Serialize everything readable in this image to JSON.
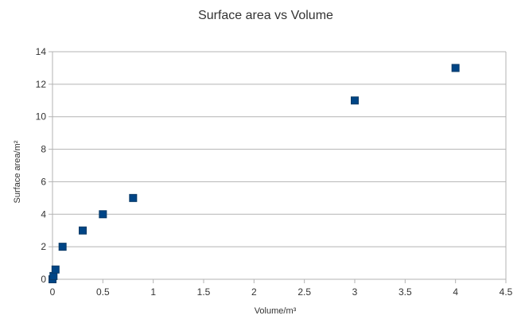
{
  "chart_data": {
    "type": "scatter",
    "title": "Surface area vs Volume",
    "xlabel": "Volume/m³",
    "ylabel": "Surface area/m²",
    "xlim": [
      0,
      4.5
    ],
    "ylim": [
      0,
      14
    ],
    "x_ticks": [
      0,
      0.5,
      1,
      1.5,
      2,
      2.5,
      3,
      3.5,
      4,
      4.5
    ],
    "y_ticks": [
      0,
      2,
      4,
      6,
      8,
      10,
      12,
      14
    ],
    "x_tick_labels": [
      "0",
      "0.5",
      "1",
      "1.5",
      "2",
      "2.5",
      "3",
      "3.5",
      "4",
      "4.5"
    ],
    "y_tick_labels": [
      "0",
      "2",
      "4",
      "6",
      "8",
      "10",
      "12",
      "14"
    ],
    "grid": {
      "horizontal": true,
      "vertical": false
    },
    "legend": "none",
    "series": [
      {
        "color": "#004586",
        "marker": "square",
        "points": [
          {
            "x": 0.0,
            "y": 0.0
          },
          {
            "x": 0.01,
            "y": 0.2
          },
          {
            "x": 0.03,
            "y": 0.6
          },
          {
            "x": 0.1,
            "y": 2
          },
          {
            "x": 0.3,
            "y": 3
          },
          {
            "x": 0.5,
            "y": 4
          },
          {
            "x": 0.8,
            "y": 5
          },
          {
            "x": 3,
            "y": 11
          },
          {
            "x": 4,
            "y": 13
          }
        ]
      }
    ]
  }
}
